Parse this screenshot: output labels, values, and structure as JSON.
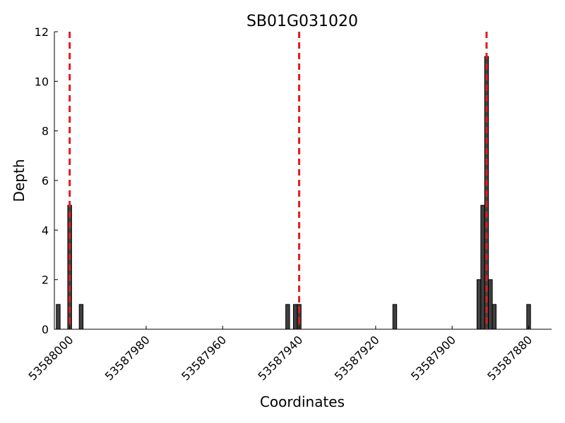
{
  "chart_data": {
    "type": "bar",
    "title": "SB01G031020",
    "xlabel": "Coordinates",
    "ylabel": "Depth",
    "x_axis_inverted": true,
    "xlim": [
      53588004,
      53587874
    ],
    "ylim": [
      0,
      12
    ],
    "x_ticks": [
      53588000,
      53587980,
      53587960,
      53587940,
      53587920,
      53587900,
      53587880
    ],
    "y_ticks": [
      0,
      2,
      4,
      6,
      8,
      10,
      12
    ],
    "grid": false,
    "legend": "none",
    "bar_width": 1,
    "bar_color": "#404040",
    "bar_edge_color": "#000000",
    "reference_line_color": "#e41a1c",
    "reference_lines_x": [
      53588000,
      53587940,
      53587891
    ],
    "bars": [
      {
        "x": 53588003,
        "depth": 1
      },
      {
        "x": 53588000,
        "depth": 5
      },
      {
        "x": 53587997,
        "depth": 1
      },
      {
        "x": 53587943,
        "depth": 1
      },
      {
        "x": 53587941,
        "depth": 1
      },
      {
        "x": 53587940,
        "depth": 1
      },
      {
        "x": 53587915,
        "depth": 1
      },
      {
        "x": 53587893,
        "depth": 2
      },
      {
        "x": 53587892,
        "depth": 5
      },
      {
        "x": 53587891,
        "depth": 11
      },
      {
        "x": 53587890,
        "depth": 2
      },
      {
        "x": 53587889,
        "depth": 1
      },
      {
        "x": 53587880,
        "depth": 1
      }
    ]
  }
}
